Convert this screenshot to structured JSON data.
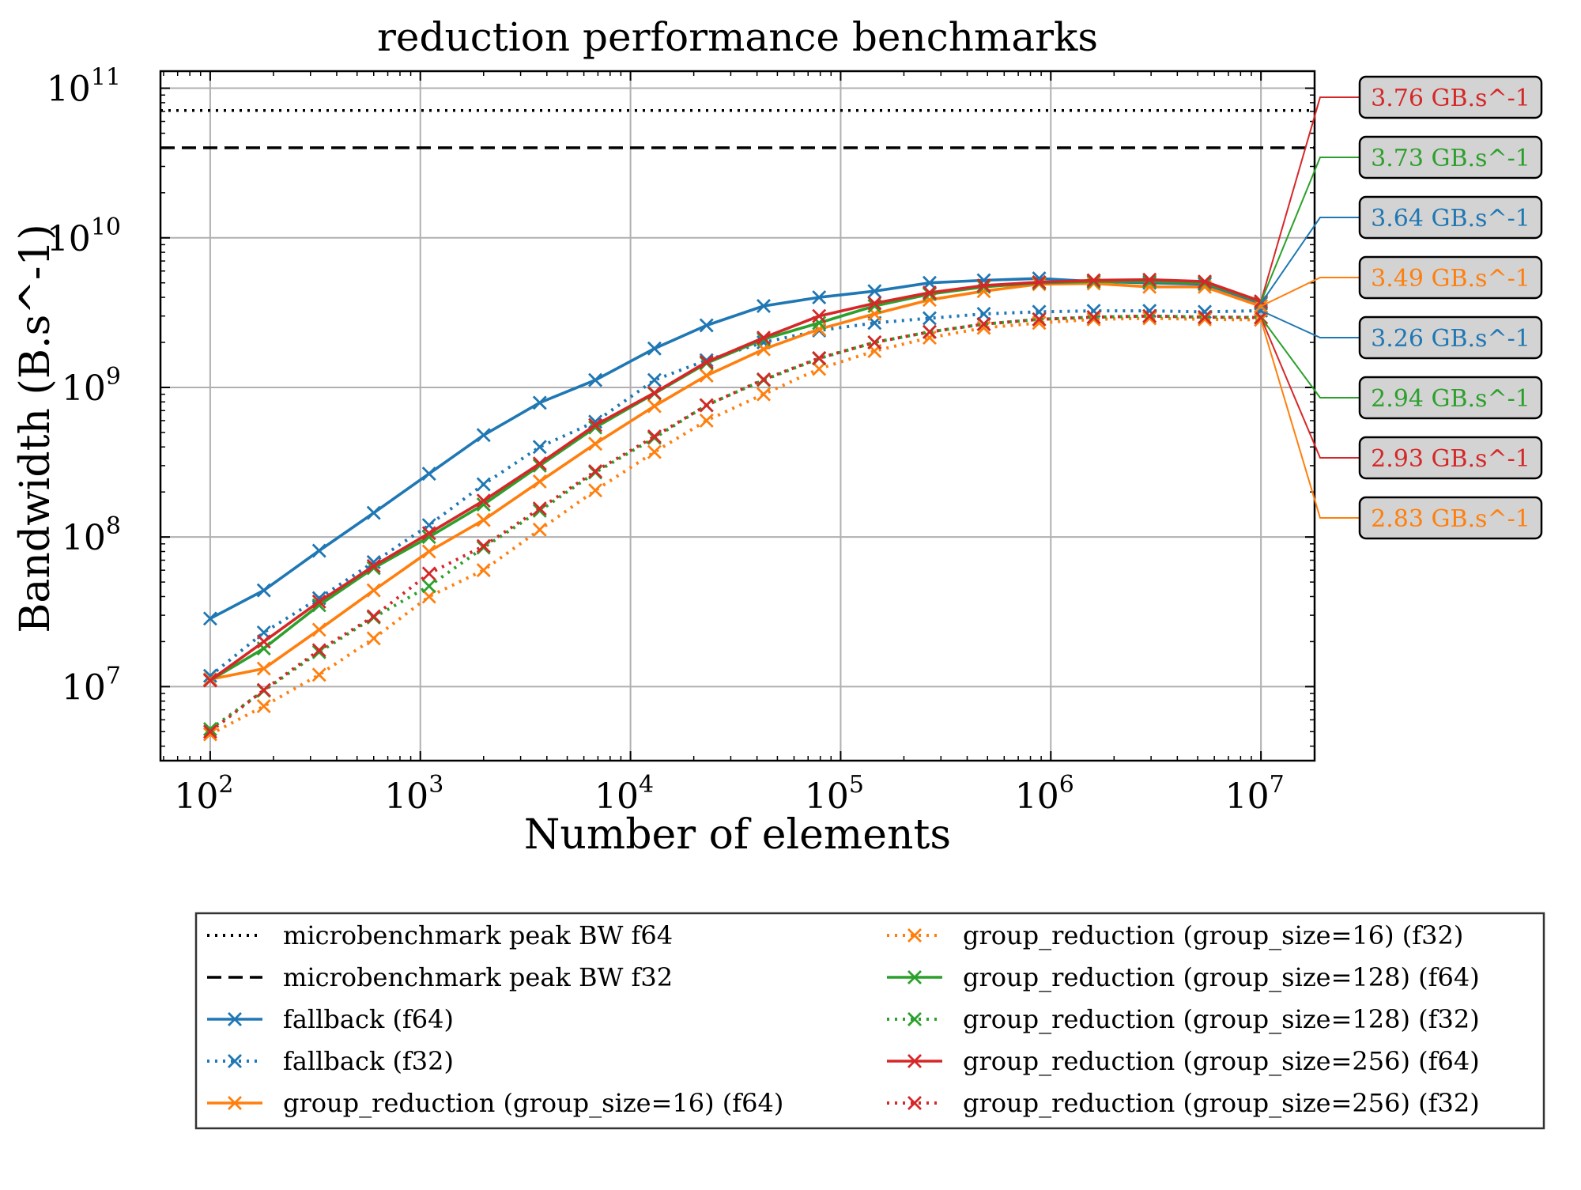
{
  "chart_data": {
    "type": "line",
    "title": "reduction performance benchmarks",
    "xlabel": "Number of elements",
    "ylabel": "Bandwidth (B.s^-1)",
    "x_scale": "log",
    "y_scale": "log",
    "xlim": [
      58,
      18000000
    ],
    "ylim": [
      3200000,
      130000000000
    ],
    "x_ticks": [
      {
        "value": 100,
        "base": "10",
        "exp": "2"
      },
      {
        "value": 1000,
        "base": "10",
        "exp": "3"
      },
      {
        "value": 10000,
        "base": "10",
        "exp": "4"
      },
      {
        "value": 100000,
        "base": "10",
        "exp": "5"
      },
      {
        "value": 1000000,
        "base": "10",
        "exp": "6"
      },
      {
        "value": 10000000,
        "base": "10",
        "exp": "7"
      }
    ],
    "y_ticks": [
      {
        "value": 10000000,
        "base": "10",
        "exp": "7"
      },
      {
        "value": 100000000,
        "base": "10",
        "exp": "8"
      },
      {
        "value": 1000000000,
        "base": "10",
        "exp": "9"
      },
      {
        "value": 10000000000,
        "base": "10",
        "exp": "10"
      },
      {
        "value": 100000000000,
        "base": "10",
        "exp": "11"
      }
    ],
    "grid": true,
    "legend_placement": "below",
    "x": [
      100,
      180,
      330,
      600,
      1100,
      2000,
      3700,
      6800,
      13000,
      23000,
      43000,
      79000,
      145000,
      265000,
      480000,
      880000,
      1600000,
      2950000,
      5400000,
      10000000
    ],
    "reference_lines": [
      {
        "name": "microbenchmark peak BW f64",
        "value": 71000000000,
        "style": "dotted",
        "color": "#000000"
      },
      {
        "name": "microbenchmark peak BW f32",
        "value": 40000000000,
        "style": "dashed",
        "color": "#000000"
      }
    ],
    "series": [
      {
        "name": "fallback (f64)",
        "color": "#1f77b4",
        "style": "solid",
        "values": [
          28500000,
          44000000,
          81000000,
          145000000,
          265000000,
          480000000,
          790000000,
          1120000000,
          1820000000,
          2600000000,
          3500000000,
          4000000000,
          4400000000,
          5000000000,
          5200000000,
          5350000000,
          5100000000,
          5000000000,
          4900000000,
          3640000000
        ]
      },
      {
        "name": "fallback (f32)",
        "color": "#1f77b4",
        "style": "dotted",
        "values": [
          11800000,
          23000000,
          39000000,
          68000000,
          120000000,
          225000000,
          400000000,
          590000000,
          1120000000,
          1520000000,
          2000000000,
          2400000000,
          2700000000,
          2900000000,
          3100000000,
          3200000000,
          3250000000,
          3250000000,
          3200000000,
          3260000000
        ]
      },
      {
        "name": "group_reduction (group_size=16) (f64)",
        "color": "#ff7f0e",
        "style": "solid",
        "values": [
          11200000,
          13200000,
          24000000,
          44000000,
          80000000,
          130000000,
          235000000,
          420000000,
          750000000,
          1200000000,
          1800000000,
          2450000000,
          3100000000,
          3850000000,
          4400000000,
          4900000000,
          4950000000,
          4700000000,
          4700000000,
          3490000000
        ]
      },
      {
        "name": "group_reduction (group_size=16) (f32)",
        "color": "#ff7f0e",
        "style": "dotted",
        "values": [
          4800000,
          7400000,
          12000000,
          21000000,
          40000000,
          60000000,
          112000000,
          205000000,
          370000000,
          600000000,
          900000000,
          1330000000,
          1750000000,
          2150000000,
          2500000000,
          2700000000,
          2850000000,
          2900000000,
          2850000000,
          2830000000
        ]
      },
      {
        "name": "group_reduction (group_size=128) (f64)",
        "color": "#2ca02c",
        "style": "solid",
        "values": [
          11000000,
          18000000,
          35000000,
          62000000,
          100000000,
          165000000,
          300000000,
          540000000,
          910000000,
          1450000000,
          2100000000,
          2700000000,
          3500000000,
          4200000000,
          4700000000,
          5000000000,
          5100000000,
          5100000000,
          5000000000,
          3730000000
        ]
      },
      {
        "name": "group_reduction (group_size=128) (f32)",
        "color": "#2ca02c",
        "style": "dotted",
        "values": [
          5200000,
          9400000,
          17000000,
          29000000,
          47000000,
          85000000,
          150000000,
          270000000,
          460000000,
          760000000,
          1120000000,
          1560000000,
          2000000000,
          2350000000,
          2650000000,
          2850000000,
          2950000000,
          3000000000,
          2950000000,
          2940000000
        ]
      },
      {
        "name": "group_reduction (group_size=256) (f64)",
        "color": "#d62728",
        "style": "solid",
        "values": [
          11000000,
          20000000,
          37000000,
          64000000,
          106000000,
          175000000,
          310000000,
          560000000,
          920000000,
          1480000000,
          2150000000,
          3000000000,
          3650000000,
          4300000000,
          4800000000,
          5050000000,
          5200000000,
          5250000000,
          5100000000,
          3760000000
        ]
      },
      {
        "name": "group_reduction (group_size=256) (f32)",
        "color": "#d62728",
        "style": "dotted",
        "values": [
          5000000,
          9500000,
          17500000,
          29500000,
          57000000,
          87000000,
          155000000,
          275000000,
          470000000,
          760000000,
          1130000000,
          1570000000,
          2000000000,
          2350000000,
          2650000000,
          2850000000,
          2950000000,
          3000000000,
          2950000000,
          2930000000
        ]
      }
    ],
    "annotations": [
      {
        "text": "3.76 GB.s^-1",
        "color": "#d62728",
        "value": 3760000000
      },
      {
        "text": "3.73 GB.s^-1",
        "color": "#2ca02c",
        "value": 3730000000
      },
      {
        "text": "3.64 GB.s^-1",
        "color": "#1f77b4",
        "value": 3640000000
      },
      {
        "text": "3.49 GB.s^-1",
        "color": "#ff7f0e",
        "value": 3490000000
      },
      {
        "text": "3.26 GB.s^-1",
        "color": "#1f77b4",
        "value": 3260000000
      },
      {
        "text": "2.94 GB.s^-1",
        "color": "#2ca02c",
        "value": 2940000000
      },
      {
        "text": "2.93 GB.s^-1",
        "color": "#d62728",
        "value": 2930000000
      },
      {
        "text": "2.83 GB.s^-1",
        "color": "#ff7f0e",
        "value": 2830000000
      }
    ],
    "legend": [
      {
        "label": "microbenchmark peak BW f64",
        "color": "#000000",
        "style": "dotted",
        "marker": false
      },
      {
        "label": "microbenchmark peak BW f32",
        "color": "#000000",
        "style": "dashed",
        "marker": false
      },
      {
        "label": "fallback (f64)",
        "color": "#1f77b4",
        "style": "solid",
        "marker": true
      },
      {
        "label": "fallback (f32)",
        "color": "#1f77b4",
        "style": "dotted",
        "marker": true
      },
      {
        "label": "group_reduction (group_size=16) (f64)",
        "color": "#ff7f0e",
        "style": "solid",
        "marker": true
      },
      {
        "label": "group_reduction (group_size=16) (f32)",
        "color": "#ff7f0e",
        "style": "dotted",
        "marker": true
      },
      {
        "label": "group_reduction (group_size=128) (f64)",
        "color": "#2ca02c",
        "style": "solid",
        "marker": true
      },
      {
        "label": "group_reduction (group_size=128) (f32)",
        "color": "#2ca02c",
        "style": "dotted",
        "marker": true
      },
      {
        "label": "group_reduction (group_size=256) (f64)",
        "color": "#d62728",
        "style": "solid",
        "marker": true
      },
      {
        "label": "group_reduction (group_size=256) (f32)",
        "color": "#d62728",
        "style": "dotted",
        "marker": true
      }
    ]
  }
}
